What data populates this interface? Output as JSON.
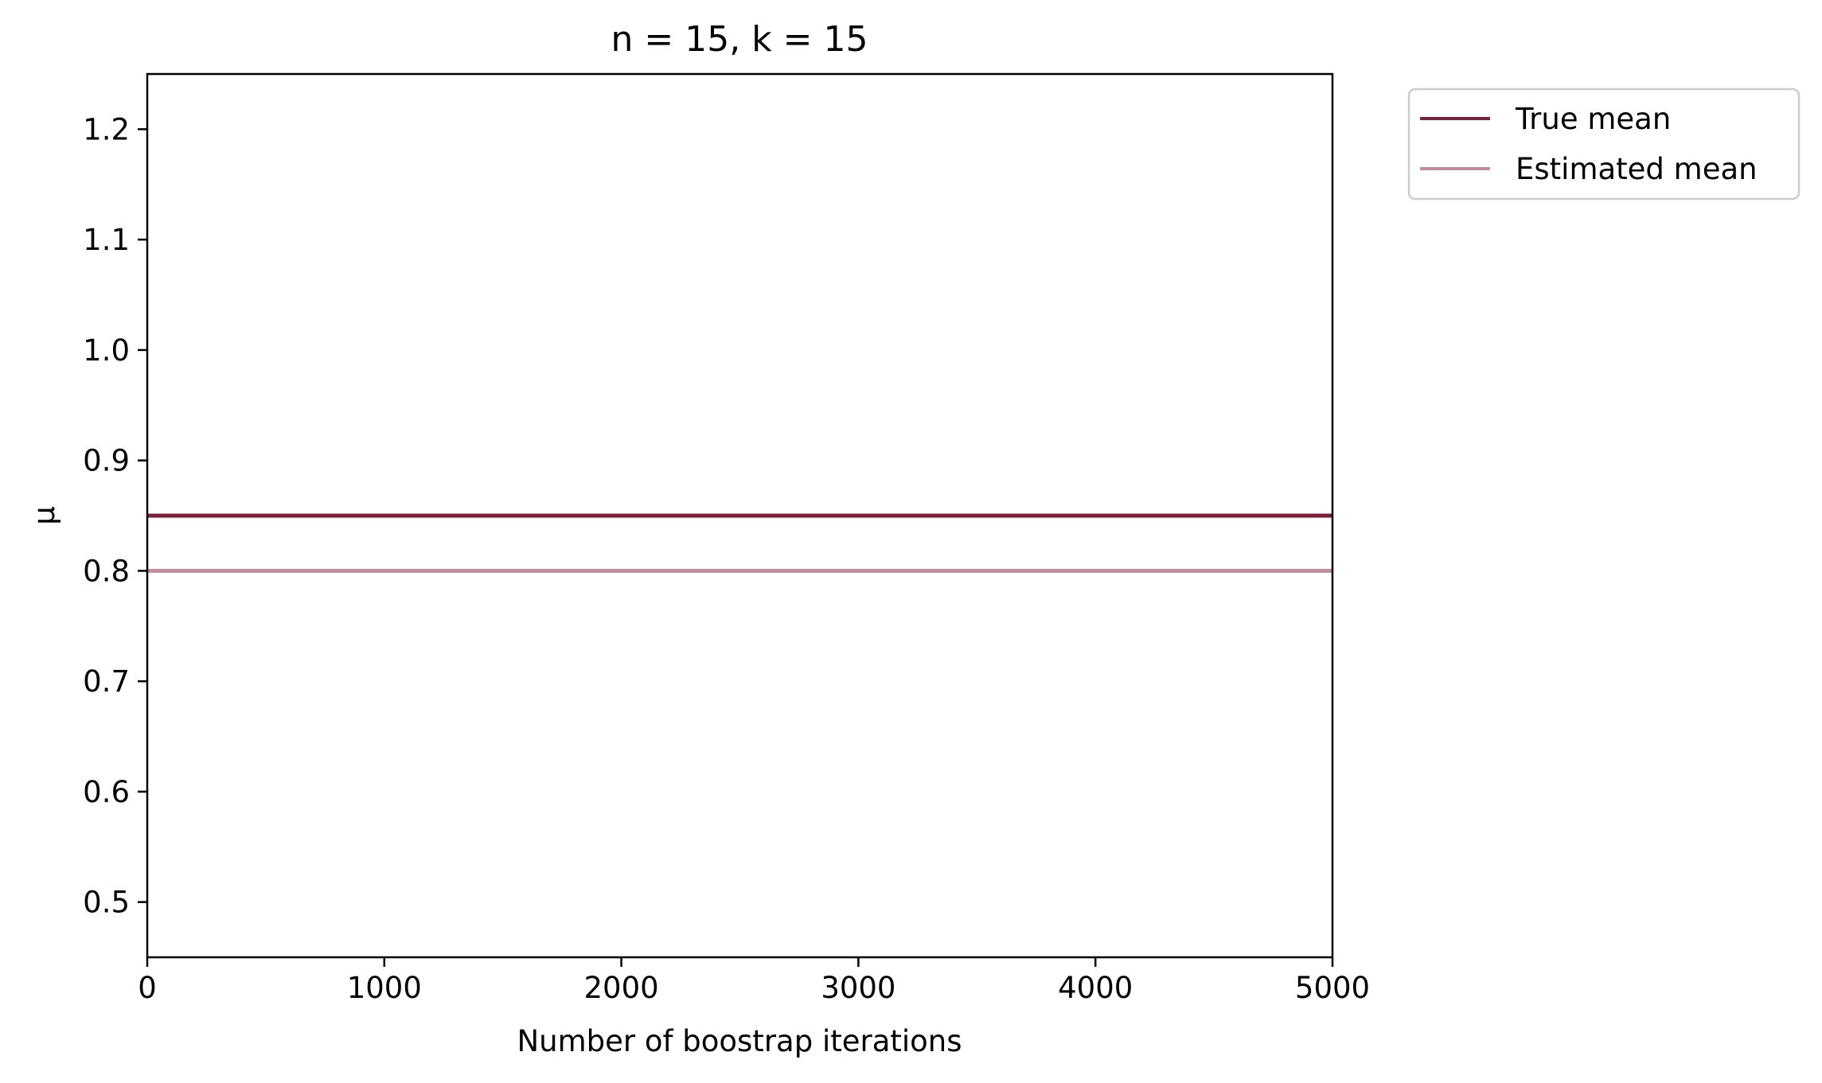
{
  "chart_data": {
    "type": "line",
    "title": "n = 15, k = 15",
    "xlabel": "Number of boostrap iterations",
    "ylabel": "μ",
    "xlim": [
      0,
      5000
    ],
    "ylim": [
      0.45,
      1.25
    ],
    "xticks": [
      0,
      1000,
      2000,
      3000,
      4000,
      5000
    ],
    "xtick_labels": [
      "0",
      "1000",
      "2000",
      "3000",
      "4000",
      "5000"
    ],
    "yticks": [
      0.5,
      0.6,
      0.7,
      0.8,
      0.9,
      1.0,
      1.1,
      1.2
    ],
    "ytick_labels": [
      "0.5",
      "0.6",
      "0.7",
      "0.8",
      "0.9",
      "1.0",
      "1.1",
      "1.2"
    ],
    "grid": false,
    "legend_position": "outside-top-right",
    "series": [
      {
        "name": "True mean",
        "color": "#7b1e37",
        "x": [
          0,
          5000
        ],
        "y": [
          0.85,
          0.85
        ]
      },
      {
        "name": "Estimated mean",
        "color": "#c48b9b",
        "x": [
          0,
          5000
        ],
        "y": [
          0.8,
          0.8
        ]
      }
    ]
  }
}
